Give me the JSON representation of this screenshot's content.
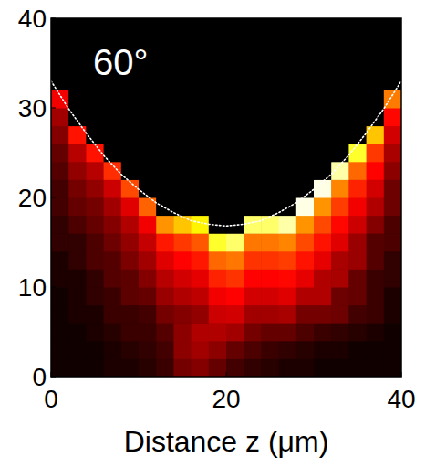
{
  "chart_data": {
    "type": "heatmap",
    "annotation": "60°",
    "x_label": "Distance z (μm)",
    "xlim": [
      0,
      40
    ],
    "ylim": [
      0,
      40
    ],
    "xticks": [
      0,
      20,
      40
    ],
    "yticks": [
      0,
      10,
      20,
      30,
      40
    ],
    "heatmap": {
      "x": [
        1,
        3,
        5,
        7,
        9,
        11,
        13,
        15,
        17,
        19,
        21,
        23,
        25,
        27,
        29,
        31,
        33,
        35,
        37,
        39
      ],
      "y": [
        1,
        3,
        5,
        7,
        9,
        11,
        13,
        15,
        17,
        19,
        21,
        23,
        25,
        27,
        29,
        31,
        33,
        35,
        37,
        39
      ],
      "zlim": [
        0,
        1
      ],
      "values": [
        [
          0.01,
          0.01,
          0.01,
          0.02,
          0.02,
          0.03,
          0.05,
          0.12,
          0.14,
          0.1,
          0.06,
          0.04,
          0.03,
          0.02,
          0.02,
          0.01,
          0.01,
          0.01,
          0.01,
          0.01
        ],
        [
          0.01,
          0.01,
          0.01,
          0.02,
          0.03,
          0.04,
          0.06,
          0.15,
          0.18,
          0.15,
          0.1,
          0.07,
          0.05,
          0.04,
          0.03,
          0.02,
          0.02,
          0.01,
          0.01,
          0.01
        ],
        [
          0.01,
          0.01,
          0.02,
          0.03,
          0.05,
          0.05,
          0.08,
          0.15,
          0.2,
          0.2,
          0.18,
          0.12,
          0.1,
          0.1,
          0.07,
          0.05,
          0.04,
          0.03,
          0.02,
          0.01
        ],
        [
          0.01,
          0.02,
          0.02,
          0.05,
          0.05,
          0.06,
          0.12,
          0.14,
          0.16,
          0.24,
          0.25,
          0.18,
          0.18,
          0.19,
          0.12,
          0.12,
          0.11,
          0.06,
          0.05,
          0.02
        ],
        [
          0.01,
          0.02,
          0.04,
          0.05,
          0.09,
          0.1,
          0.17,
          0.2,
          0.22,
          0.3,
          0.32,
          0.25,
          0.25,
          0.27,
          0.2,
          0.2,
          0.11,
          0.1,
          0.05,
          0.02
        ],
        [
          0.02,
          0.02,
          0.04,
          0.08,
          0.09,
          0.14,
          0.21,
          0.25,
          0.28,
          0.38,
          0.41,
          0.32,
          0.32,
          0.33,
          0.28,
          0.2,
          0.19,
          0.1,
          0.05,
          0.04
        ],
        [
          0.02,
          0.04,
          0.07,
          0.08,
          0.13,
          0.18,
          0.27,
          0.32,
          0.36,
          0.51,
          0.54,
          0.41,
          0.41,
          0.43,
          0.35,
          0.28,
          0.19,
          0.17,
          0.08,
          0.04
        ],
        [
          0.04,
          0.04,
          0.07,
          0.11,
          0.16,
          0.23,
          0.36,
          0.42,
          0.48,
          0.85,
          0.9,
          0.54,
          0.54,
          0.57,
          0.45,
          0.35,
          0.27,
          0.17,
          0.08,
          0.07
        ],
        [
          0.04,
          0.07,
          0.1,
          0.14,
          0.2,
          0.3,
          0.6,
          0.7,
          0.8,
          0,
          0,
          0.9,
          0.9,
          0.95,
          0.6,
          0.45,
          0.33,
          0.24,
          0.14,
          0.07
        ],
        [
          0.06,
          0.1,
          0.12,
          0.18,
          0.27,
          0.5,
          0,
          0,
          0,
          0,
          0,
          0,
          0,
          0,
          1,
          0.6,
          0.43,
          0.3,
          0.2,
          0.11
        ],
        [
          0.06,
          0.12,
          0.16,
          0.24,
          0.45,
          0,
          0,
          0,
          0,
          0,
          0,
          0,
          0,
          0,
          0,
          1,
          0.57,
          0.38,
          0.25,
          0.11
        ],
        [
          0.08,
          0.16,
          0.21,
          0.4,
          0,
          0,
          0,
          0,
          0,
          0,
          0,
          0,
          0,
          0,
          0,
          0,
          0.95,
          0.51,
          0.32,
          0.15
        ],
        [
          0.1,
          0.21,
          0.35,
          0,
          0,
          0,
          0,
          0,
          0,
          0,
          0,
          0,
          0,
          0,
          0,
          0,
          0,
          0.85,
          0.42,
          0.19
        ],
        [
          0.14,
          0.35,
          0,
          0,
          0,
          0,
          0,
          0,
          0,
          0,
          0,
          0,
          0,
          0,
          0,
          0,
          0,
          0,
          0.7,
          0.25
        ],
        [
          0.18,
          0,
          0,
          0,
          0,
          0,
          0,
          0,
          0,
          0,
          0,
          0,
          0,
          0,
          0,
          0,
          0,
          0,
          0,
          0.33
        ],
        [
          0.3,
          0,
          0,
          0,
          0,
          0,
          0,
          0,
          0,
          0,
          0,
          0,
          0,
          0,
          0,
          0,
          0,
          0,
          0,
          0.55
        ],
        [
          0,
          0,
          0,
          0,
          0,
          0,
          0,
          0,
          0,
          0,
          0,
          0,
          0,
          0,
          0,
          0,
          0,
          0,
          0,
          0
        ],
        [
          0,
          0,
          0,
          0,
          0,
          0,
          0,
          0,
          0,
          0,
          0,
          0,
          0,
          0,
          0,
          0,
          0,
          0,
          0,
          0
        ],
        [
          0,
          0,
          0,
          0,
          0,
          0,
          0,
          0,
          0,
          0,
          0,
          0,
          0,
          0,
          0,
          0,
          0,
          0,
          0,
          0
        ],
        [
          0,
          0,
          0,
          0,
          0,
          0,
          0,
          0,
          0,
          0,
          0,
          0,
          0,
          0,
          0,
          0,
          0,
          0,
          0,
          0
        ]
      ]
    },
    "curve": {
      "x": [
        0,
        2,
        4,
        6,
        8,
        10,
        12,
        14,
        16,
        18,
        20,
        22,
        24,
        26,
        28,
        30,
        32,
        34,
        36,
        38,
        40
      ],
      "y": [
        33.0,
        29.9,
        27.2,
        24.7,
        22.6,
        20.9,
        19.4,
        18.3,
        17.4,
        17.0,
        16.8,
        17.0,
        17.4,
        18.3,
        19.4,
        20.9,
        22.6,
        24.7,
        27.2,
        29.9,
        33.0
      ],
      "color": "#ffffff",
      "line_style": "dotted"
    }
  }
}
